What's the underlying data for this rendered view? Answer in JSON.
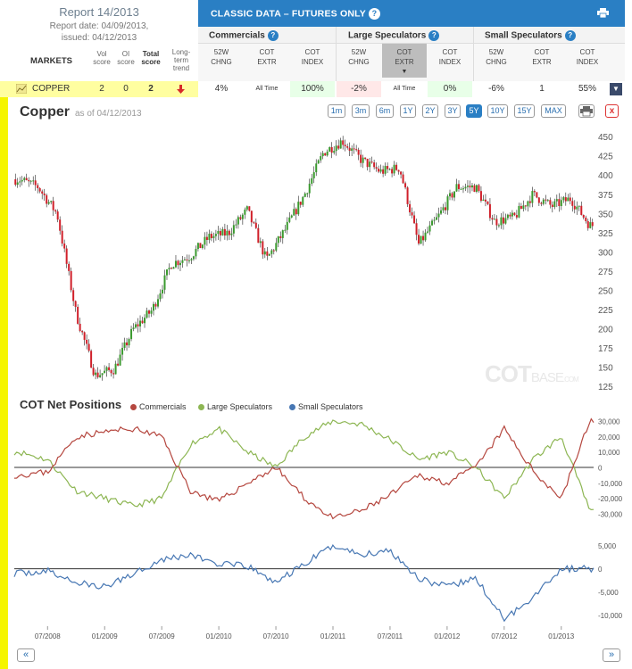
{
  "report": {
    "title": "Report 14/2013",
    "date": "Report date: 04/09/2013,",
    "issued": "issued: 04/12/2013"
  },
  "markets_header": {
    "markets": "MARKETS",
    "vol": [
      "Vol",
      "score"
    ],
    "oi": [
      "OI",
      "score"
    ],
    "total": [
      "Total",
      "score"
    ],
    "trend": [
      "Long-",
      "term",
      "trend"
    ]
  },
  "table": {
    "title": "CLASSIC DATA – FUTURES ONLY",
    "groups": [
      "Commercials",
      "Large Speculators",
      "Small Speculators"
    ],
    "columns": [
      [
        "52W",
        "CHNG"
      ],
      [
        "COT",
        "EXTR"
      ],
      [
        "COT",
        "INDEX"
      ],
      [
        "52W",
        "CHNG"
      ],
      [
        "COT",
        "EXTR"
      ],
      [
        "COT",
        "INDEX"
      ],
      [
        "52W",
        "CHNG"
      ],
      [
        "COT",
        "EXTR"
      ],
      [
        "COT",
        "INDEX"
      ]
    ]
  },
  "row": {
    "market": "COPPER",
    "vol_score": "2",
    "oi_score": "0",
    "total_score": "2",
    "cells": [
      "4%",
      "All Time",
      "100%",
      "-2%",
      "All Time",
      "0%",
      "-6%",
      "1",
      "55%"
    ]
  },
  "chart": {
    "title": "Copper",
    "asof": "as of 04/12/2013",
    "ranges": [
      "1m",
      "3m",
      "6m",
      "1Y",
      "2Y",
      "3Y",
      "5Y",
      "10Y",
      "15Y",
      "MAX"
    ],
    "active_range": "5Y",
    "watermark": "COT",
    "watermark2": "BASE",
    "watermark3": ".COM",
    "cot_title": "COT Net Positions",
    "legend": [
      "Commercials",
      "Large Speculators",
      "Small Speculators"
    ],
    "nav_prev": "«",
    "nav_next": "»"
  },
  "colors": {
    "commercials": "#b5473f",
    "large_specs": "#8db653",
    "small_specs": "#4777b3",
    "candle_up": "#3a9a2e",
    "candle_down": "#d0202a"
  },
  "chart_data": [
    {
      "type": "candlestick",
      "title": "Copper",
      "x_ticks": [
        "07/2008",
        "01/2009",
        "07/2009",
        "01/2010",
        "07/2010",
        "01/2011",
        "07/2011",
        "01/2012",
        "07/2012",
        "01/2013"
      ],
      "y_ticks": [
        125,
        150,
        175,
        200,
        225,
        250,
        275,
        300,
        325,
        350,
        375,
        400,
        425,
        450
      ],
      "ylim": [
        120,
        460
      ],
      "approx_close_series": {
        "x": [
          "2008-04",
          "2008-06",
          "2008-08",
          "2008-10",
          "2008-12",
          "2009-02",
          "2009-04",
          "2009-06",
          "2009-08",
          "2009-10",
          "2009-12",
          "2010-02",
          "2010-04",
          "2010-06",
          "2010-08",
          "2010-10",
          "2010-12",
          "2011-02",
          "2011-04",
          "2011-06",
          "2011-08",
          "2011-10",
          "2011-12",
          "2012-02",
          "2012-04",
          "2012-06",
          "2012-08",
          "2012-10",
          "2012-12",
          "2013-02",
          "2013-04"
        ],
        "y": [
          395,
          385,
          350,
          220,
          140,
          148,
          200,
          225,
          285,
          295,
          320,
          325,
          355,
          290,
          330,
          375,
          430,
          445,
          420,
          405,
          410,
          310,
          345,
          385,
          385,
          340,
          345,
          375,
          360,
          370,
          335
        ]
      }
    },
    {
      "type": "line",
      "title": "COT Net Positions",
      "series": [
        {
          "name": "Commercials",
          "x": [
            "2008-04",
            "2008-07",
            "2008-10",
            "2009-01",
            "2009-04",
            "2009-07",
            "2009-10",
            "2010-01",
            "2010-04",
            "2010-07",
            "2010-10",
            "2011-01",
            "2011-04",
            "2011-07",
            "2011-10",
            "2012-01",
            "2012-04",
            "2012-07",
            "2012-10",
            "2013-01",
            "2013-04"
          ],
          "y": [
            -5000,
            -3000,
            20000,
            23000,
            25000,
            20000,
            -15000,
            -22000,
            -10000,
            0,
            -20000,
            -33000,
            -28000,
            -18000,
            -5000,
            -10000,
            0,
            25000,
            -2000,
            -20000,
            30000
          ]
        },
        {
          "name": "Large Speculators",
          "x": [
            "2008-04",
            "2008-07",
            "2008-10",
            "2009-01",
            "2009-04",
            "2009-07",
            "2009-10",
            "2010-01",
            "2010-04",
            "2010-07",
            "2010-10",
            "2011-01",
            "2011-04",
            "2011-07",
            "2011-10",
            "2012-01",
            "2012-04",
            "2012-07",
            "2012-10",
            "2013-01",
            "2013-04"
          ],
          "y": [
            10000,
            5000,
            -15000,
            -20000,
            -25000,
            -20000,
            15000,
            25000,
            10000,
            0,
            20000,
            30000,
            28000,
            18000,
            5000,
            10000,
            0,
            -20000,
            5000,
            20000,
            -28000
          ]
        },
        {
          "name": "Small Speculators",
          "x": [
            "2008-04",
            "2008-07",
            "2008-10",
            "2009-01",
            "2009-04",
            "2009-07",
            "2009-10",
            "2010-01",
            "2010-04",
            "2010-07",
            "2010-10",
            "2011-01",
            "2011-04",
            "2011-07",
            "2011-10",
            "2012-01",
            "2012-04",
            "2012-07",
            "2012-10",
            "2013-01",
            "2013-04"
          ],
          "y": [
            -1000,
            -500,
            -3000,
            -4000,
            -1000,
            2000,
            3000,
            1000,
            500,
            -3000,
            1000,
            5000,
            3000,
            4000,
            -2000,
            -4000,
            -2000,
            -11000,
            -6000,
            0,
            0
          ]
        }
      ],
      "y_ticks_top": [
        "30,000",
        "20,000",
        "10,000",
        "0",
        "-10,000",
        "-20,000",
        "-30,000"
      ],
      "y_ticks_bottom": [
        "5,000",
        "0",
        "-5,000",
        "-10,000"
      ],
      "ylim_top": [
        -30000,
        30000
      ],
      "ylim_bottom": [
        -12000,
        8000
      ]
    }
  ]
}
